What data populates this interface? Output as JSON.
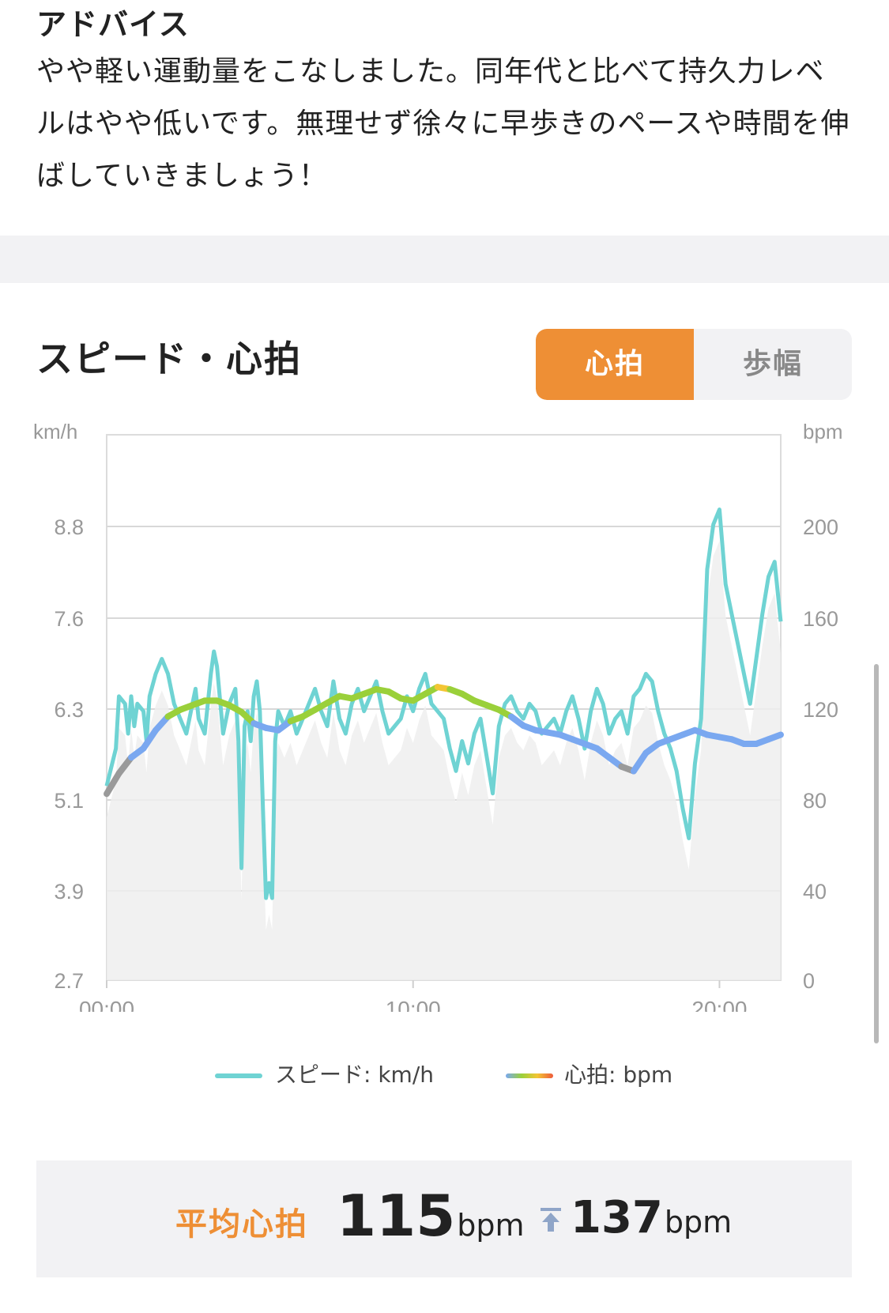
{
  "advice": {
    "title": "アドバイス",
    "body": "やや軽い運動量をこなしました。同年代と比べて持久力レベルはやや低いです。無理せず徐々に早歩きのペースや時間を伸ばしていきましょう！"
  },
  "section": {
    "title": "スピード・心拍",
    "tabs": [
      {
        "label": "心拍",
        "active": true
      },
      {
        "label": "歩幅",
        "active": false
      }
    ]
  },
  "colors": {
    "accent": "#ee8f35",
    "speed_line": "#6fd3d3",
    "hr_low": "#7aa8f0",
    "hr_mid": "#9ad03a",
    "hr_high": "#f3c534",
    "hr_idle": "#9a9a9a",
    "area": "#eeeeee"
  },
  "chart_data": {
    "type": "line",
    "y_left": {
      "label": "km/h",
      "ticks": [
        "8.8",
        "7.6",
        "6.3",
        "5.1",
        "3.9",
        "2.7"
      ],
      "range": [
        2.7,
        10.0
      ]
    },
    "y_right": {
      "label": "bpm",
      "ticks": [
        "200",
        "160",
        "120",
        "80",
        "40",
        "0"
      ],
      "range": [
        0,
        240
      ]
    },
    "x": {
      "ticks": [
        "00:00",
        "10:00",
        "20:00"
      ],
      "range": [
        0,
        22
      ]
    },
    "grid": true,
    "series": [
      {
        "name": "スピード: km/h",
        "axis": "left",
        "points": [
          [
            0,
            5.3
          ],
          [
            0.3,
            5.8
          ],
          [
            0.4,
            6.5
          ],
          [
            0.6,
            6.4
          ],
          [
            0.7,
            6.0
          ],
          [
            0.8,
            6.5
          ],
          [
            0.9,
            6.1
          ],
          [
            1.0,
            6.4
          ],
          [
            1.2,
            6.3
          ],
          [
            1.3,
            5.9
          ],
          [
            1.4,
            6.5
          ],
          [
            1.6,
            6.8
          ],
          [
            1.8,
            7.0
          ],
          [
            2.0,
            6.8
          ],
          [
            2.2,
            6.4
          ],
          [
            2.4,
            6.2
          ],
          [
            2.6,
            6.0
          ],
          [
            2.8,
            6.4
          ],
          [
            2.9,
            6.6
          ],
          [
            3.0,
            6.2
          ],
          [
            3.2,
            6.0
          ],
          [
            3.4,
            6.8
          ],
          [
            3.5,
            7.1
          ],
          [
            3.6,
            6.9
          ],
          [
            3.8,
            6.0
          ],
          [
            4.0,
            6.4
          ],
          [
            4.2,
            6.6
          ],
          [
            4.3,
            5.9
          ],
          [
            4.4,
            4.2
          ],
          [
            4.5,
            6.1
          ],
          [
            4.6,
            6.3
          ],
          [
            4.7,
            5.9
          ],
          [
            4.8,
            6.5
          ],
          [
            4.9,
            6.7
          ],
          [
            5.0,
            6.3
          ],
          [
            5.1,
            5.0
          ],
          [
            5.2,
            3.8
          ],
          [
            5.3,
            4.0
          ],
          [
            5.4,
            3.8
          ],
          [
            5.5,
            5.9
          ],
          [
            5.6,
            6.3
          ],
          [
            5.8,
            6.1
          ],
          [
            6.0,
            6.3
          ],
          [
            6.2,
            6.0
          ],
          [
            6.4,
            6.2
          ],
          [
            6.6,
            6.4
          ],
          [
            6.8,
            6.6
          ],
          [
            7.0,
            6.3
          ],
          [
            7.2,
            6.1
          ],
          [
            7.4,
            6.7
          ],
          [
            7.6,
            6.2
          ],
          [
            7.8,
            6.0
          ],
          [
            8.0,
            6.4
          ],
          [
            8.2,
            6.6
          ],
          [
            8.4,
            6.3
          ],
          [
            8.6,
            6.5
          ],
          [
            8.8,
            6.7
          ],
          [
            9.0,
            6.3
          ],
          [
            9.2,
            6.0
          ],
          [
            9.4,
            6.1
          ],
          [
            9.6,
            6.2
          ],
          [
            9.8,
            6.5
          ],
          [
            10.0,
            6.3
          ],
          [
            10.2,
            6.6
          ],
          [
            10.4,
            6.8
          ],
          [
            10.6,
            6.4
          ],
          [
            10.8,
            6.3
          ],
          [
            11.0,
            6.2
          ],
          [
            11.2,
            5.8
          ],
          [
            11.4,
            5.5
          ],
          [
            11.6,
            5.9
          ],
          [
            11.8,
            5.6
          ],
          [
            12.0,
            6.0
          ],
          [
            12.2,
            6.2
          ],
          [
            12.4,
            5.7
          ],
          [
            12.6,
            5.2
          ],
          [
            12.8,
            6.1
          ],
          [
            13.0,
            6.4
          ],
          [
            13.2,
            6.5
          ],
          [
            13.4,
            6.3
          ],
          [
            13.6,
            6.2
          ],
          [
            13.8,
            6.4
          ],
          [
            14.0,
            6.3
          ],
          [
            14.2,
            6.0
          ],
          [
            14.4,
            6.1
          ],
          [
            14.6,
            6.2
          ],
          [
            14.8,
            6.0
          ],
          [
            15.0,
            6.3
          ],
          [
            15.2,
            6.5
          ],
          [
            15.4,
            6.2
          ],
          [
            15.6,
            5.8
          ],
          [
            15.8,
            6.3
          ],
          [
            16.0,
            6.6
          ],
          [
            16.2,
            6.4
          ],
          [
            16.4,
            6.0
          ],
          [
            16.6,
            6.2
          ],
          [
            16.8,
            6.3
          ],
          [
            17.0,
            6.0
          ],
          [
            17.2,
            6.5
          ],
          [
            17.4,
            6.6
          ],
          [
            17.6,
            6.8
          ],
          [
            17.8,
            6.7
          ],
          [
            18.0,
            6.3
          ],
          [
            18.2,
            6.0
          ],
          [
            18.4,
            5.8
          ],
          [
            18.6,
            5.5
          ],
          [
            18.8,
            5.0
          ],
          [
            19.0,
            4.6
          ],
          [
            19.2,
            5.6
          ],
          [
            19.4,
            6.2
          ],
          [
            19.6,
            8.2
          ],
          [
            19.8,
            8.8
          ],
          [
            20.0,
            9.0
          ],
          [
            20.2,
            8.0
          ],
          [
            20.4,
            7.6
          ],
          [
            20.6,
            7.2
          ],
          [
            20.8,
            6.8
          ],
          [
            21.0,
            6.4
          ],
          [
            21.2,
            7.0
          ],
          [
            21.4,
            7.6
          ],
          [
            21.6,
            8.1
          ],
          [
            21.8,
            8.3
          ],
          [
            22.0,
            7.5
          ]
        ]
      },
      {
        "name": "心拍: bpm",
        "axis": "right",
        "points": [
          [
            0,
            82
          ],
          [
            0.4,
            91
          ],
          [
            0.8,
            98
          ],
          [
            1.2,
            102
          ],
          [
            1.6,
            110
          ],
          [
            2.0,
            116
          ],
          [
            2.4,
            119
          ],
          [
            2.8,
            121
          ],
          [
            3.2,
            123
          ],
          [
            3.6,
            123
          ],
          [
            4.0,
            121
          ],
          [
            4.4,
            118
          ],
          [
            4.8,
            113
          ],
          [
            5.2,
            111
          ],
          [
            5.6,
            110
          ],
          [
            6.0,
            114
          ],
          [
            6.4,
            116
          ],
          [
            6.8,
            119
          ],
          [
            7.2,
            122
          ],
          [
            7.6,
            125
          ],
          [
            8.0,
            124
          ],
          [
            8.4,
            126
          ],
          [
            8.8,
            128
          ],
          [
            9.2,
            127
          ],
          [
            9.6,
            124
          ],
          [
            10.0,
            123
          ],
          [
            10.4,
            126
          ],
          [
            10.8,
            129
          ],
          [
            11.2,
            128
          ],
          [
            11.6,
            126
          ],
          [
            12.0,
            123
          ],
          [
            12.4,
            121
          ],
          [
            12.8,
            119
          ],
          [
            13.2,
            116
          ],
          [
            13.6,
            112
          ],
          [
            14.0,
            110
          ],
          [
            14.4,
            109
          ],
          [
            14.8,
            108
          ],
          [
            15.2,
            106
          ],
          [
            15.6,
            104
          ],
          [
            16.0,
            102
          ],
          [
            16.4,
            98
          ],
          [
            16.8,
            94
          ],
          [
            17.2,
            92
          ],
          [
            17.6,
            100
          ],
          [
            18.0,
            104
          ],
          [
            18.4,
            106
          ],
          [
            18.8,
            108
          ],
          [
            19.2,
            110
          ],
          [
            19.6,
            108
          ],
          [
            20.0,
            107
          ],
          [
            20.4,
            106
          ],
          [
            20.8,
            104
          ],
          [
            21.2,
            104
          ],
          [
            21.6,
            106
          ],
          [
            22.0,
            108
          ]
        ]
      }
    ]
  },
  "summary": {
    "label": "平均心拍",
    "avg_value": "115",
    "avg_unit": "bpm",
    "max_value": "137",
    "max_unit": "bpm"
  }
}
